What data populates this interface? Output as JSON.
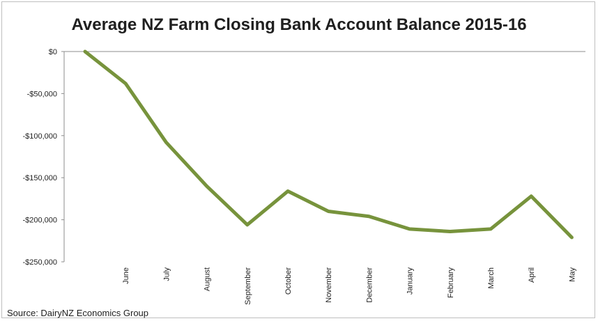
{
  "chart_data": {
    "type": "line",
    "title": "Average NZ Farm Closing Bank Account Balance 2015-16",
    "source": "Source: DairyNZ Economics Group",
    "categories": [
      "",
      "June",
      "July",
      "August",
      "September",
      "October",
      "November",
      "December",
      "January",
      "February",
      "March",
      "April",
      "May"
    ],
    "series": [
      {
        "values": [
          0,
          -38000,
          -108000,
          -160000,
          -206000,
          -166000,
          -190000,
          -196000,
          -211000,
          -214000,
          -211000,
          -172000,
          -221000
        ],
        "color": "#77933c"
      }
    ],
    "yticks": [
      "$0",
      "-$50,000",
      "-$100,000",
      "-$150,000",
      "-$200,000",
      "-$250,000"
    ],
    "ytick_values": [
      0,
      -50000,
      -100000,
      -150000,
      -200000,
      -250000
    ],
    "ylim": [
      -250000,
      0
    ],
    "grid": false,
    "legend": "none"
  }
}
